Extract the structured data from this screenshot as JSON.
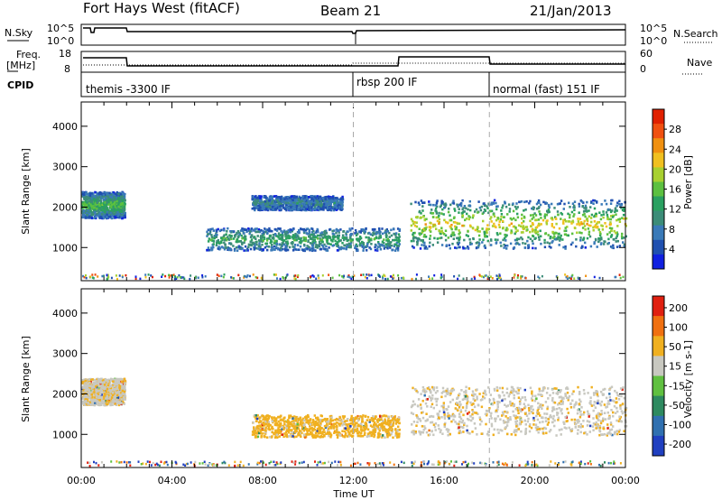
{
  "header": {
    "station": "Fort Hays West (fitACF)",
    "beam": "Beam 21",
    "date": "21/Jan/2013"
  },
  "top_panels": {
    "nsky_label": "N.Sky",
    "nsearch_label": "N.Search",
    "noise_ticks": [
      "10^5",
      "10^0"
    ],
    "noise_right_ticks": [
      "10^5",
      "10^0"
    ],
    "freq_label_1": "Freq.",
    "freq_label_2": "[MHz]",
    "freq_ticks": [
      "18",
      "8"
    ],
    "nave_label": "Nave",
    "nave_ticks": [
      "60",
      "0"
    ],
    "cpid_label": "CPID",
    "cpid_segments": [
      {
        "label": "themis -3300 IF",
        "start_hour": 0
      },
      {
        "label": "rbsp 200 IF",
        "start_hour": 12
      },
      {
        "label": "normal (fast) 151 IF",
        "start_hour": 18
      }
    ]
  },
  "chart_data": [
    {
      "type": "heatmap",
      "name": "power",
      "ylabel": "Slant Range [km]",
      "xlabel": "",
      "ylim": [
        180,
        4600
      ],
      "yticks": [
        "1000",
        "2000",
        "3000",
        "4000"
      ],
      "colorbar_label": "Power [dB]",
      "colorbar_ticks": [
        "4",
        "8",
        "12",
        "16",
        "20",
        "24",
        "28"
      ],
      "colorbar_colors": [
        "#1020e0",
        "#2050b0",
        "#3a7ab8",
        "#3c8c78",
        "#2aa060",
        "#5cc040",
        "#a8d030",
        "#f0c020",
        "#f09010",
        "#f05010",
        "#e02000"
      ],
      "regions": [
        {
          "t0": 0.0,
          "t1": 1.9,
          "r0": 1750,
          "r1": 2400,
          "level": 0.35
        },
        {
          "t0": 5.5,
          "t1": 14.0,
          "r0": 950,
          "r1": 1500,
          "level": 0.3
        },
        {
          "t0": 7.5,
          "t1": 11.5,
          "r0": 1950,
          "r1": 2300,
          "level": 0.15
        },
        {
          "t0": 14.5,
          "t1": 24.0,
          "r0": 1000,
          "r1": 2200,
          "level": 0.55
        }
      ]
    },
    {
      "type": "heatmap",
      "name": "velocity",
      "ylabel": "Slant Range [km]",
      "xlabel": "Time UT",
      "ylim": [
        180,
        4600
      ],
      "yticks": [
        "1000",
        "2000",
        "3000",
        "4000"
      ],
      "xticks": [
        "00:00",
        "04:00",
        "08:00",
        "12:00",
        "16:00",
        "20:00",
        "00:00"
      ],
      "colorbar_label": "Velocity [m s-1]",
      "colorbar_ticks": [
        "200",
        "100",
        "50",
        "15",
        "-15",
        "-50",
        "-100",
        "-200"
      ],
      "colorbar_colors": [
        "#2040c0",
        "#3070b0",
        "#2e8a60",
        "#60c040",
        "#c8c8c0",
        "#f0b020",
        "#f07010",
        "#e02010"
      ],
      "regions": [
        {
          "t0": 0.0,
          "t1": 1.9,
          "r0": 1750,
          "r1": 2400,
          "level": 0.5
        },
        {
          "t0": 7.5,
          "t1": 14.0,
          "r0": 950,
          "r1": 1500,
          "level": 0.7
        },
        {
          "t0": 14.5,
          "t1": 24.0,
          "r0": 1000,
          "r1": 2200,
          "level": 0.5
        }
      ]
    }
  ]
}
